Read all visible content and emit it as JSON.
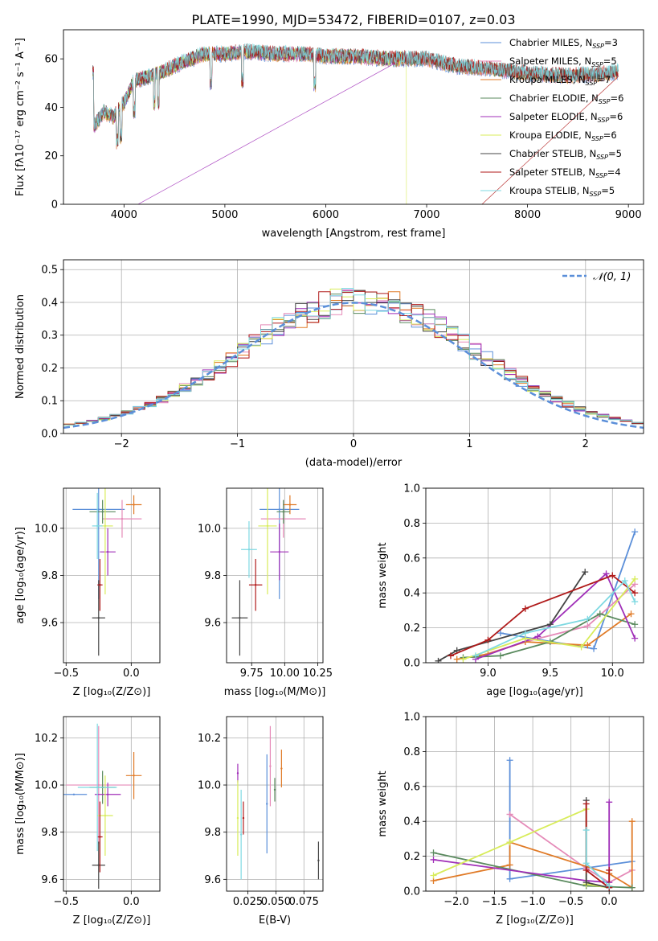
{
  "figure_title": "PLATE=1990, MJD=53472, FIBERID=0107, z=0.03",
  "colors": {
    "c0": "#5b8fd9",
    "c1": "#e58ab8",
    "c2": "#e07a26",
    "c3": "#5a8a5e",
    "c4": "#a02fb8",
    "c5": "#d8ec5a",
    "c6": "#444444",
    "c7": "#b01a1a",
    "c8": "#7fd9e2"
  },
  "chart_data": [
    {
      "id": "spectrum",
      "type": "line",
      "xlabel": "wavelength [Angstrom, rest frame]",
      "ylabel": "Flux [fλ10⁻¹⁷ erg cm⁻² s⁻¹ A⁻¹]",
      "xlim": [
        3400,
        9150
      ],
      "ylim": [
        0,
        72
      ],
      "xticks": [
        4000,
        5000,
        6000,
        7000,
        8000,
        9000
      ],
      "yticks": [
        0,
        20,
        40,
        60
      ],
      "grid": false,
      "legend": "top-right",
      "legend_entries": [
        "Chabrier MILES, N$_{SSP}$=3",
        "Salpeter MILES, N$_{SSP}$=5",
        "Kroupa MILES, N$_{SSP}$=7",
        "Chabrier ELODIE, N$_{SSP}$=6",
        "Salpeter ELODIE, N$_{SSP}$=6",
        "Kroupa ELODIE, N$_{SSP}$=6",
        "Chabrier STELIB, N$_{SSP}$=5",
        "Salpeter STELIB, N$_{SSP}$=4",
        "Kroupa STELIB, N$_{SSP}$=5"
      ],
      "legend_labels": [
        {
          "pre": "Chabrier MILES, N",
          "sub": "SSP",
          "post": "=3"
        },
        {
          "pre": "Salpeter MILES, N",
          "sub": "SSP",
          "post": "=5"
        },
        {
          "pre": "Kroupa MILES, N",
          "sub": "SSP",
          "post": "=7"
        },
        {
          "pre": "Chabrier ELODIE, N",
          "sub": "SSP",
          "post": "=6"
        },
        {
          "pre": "Salpeter ELODIE, N",
          "sub": "SSP",
          "post": "=6"
        },
        {
          "pre": "Kroupa ELODIE, N",
          "sub": "SSP",
          "post": "=6"
        },
        {
          "pre": "Chabrier STELIB, N",
          "sub": "SSP",
          "post": "=5"
        },
        {
          "pre": "Salpeter STELIB, N",
          "sub": "SSP",
          "post": "=4"
        },
        {
          "pre": "Kroupa STELIB, N",
          "sub": "SSP",
          "post": "=5"
        }
      ],
      "continuum": [
        [
          3700,
          32
        ],
        [
          3800,
          38
        ],
        [
          3900,
          36
        ],
        [
          4000,
          42
        ],
        [
          4100,
          51
        ],
        [
          4200,
          52
        ],
        [
          4400,
          55
        ],
        [
          4600,
          59
        ],
        [
          4800,
          62
        ],
        [
          5000,
          62
        ],
        [
          5200,
          63
        ],
        [
          5500,
          62
        ],
        [
          5800,
          62
        ],
        [
          6000,
          61
        ],
        [
          6300,
          61
        ],
        [
          6600,
          60
        ],
        [
          7000,
          60
        ],
        [
          7300,
          57
        ],
        [
          7600,
          56
        ],
        [
          8000,
          54
        ],
        [
          8400,
          53
        ],
        [
          8800,
          54
        ],
        [
          8900,
          55
        ]
      ],
      "wavelength_range": [
        3690,
        8900
      ],
      "series_ends": [
        8900,
        8900,
        8900,
        8900,
        6800,
        6800,
        8900,
        8900,
        8900
      ],
      "dropouts": [
        {
          "series": 7,
          "at": 7420
        },
        {
          "series": 5,
          "at": 6800
        },
        {
          "series": 4,
          "at": 3920
        }
      ]
    },
    {
      "id": "residuals",
      "type": "histogram",
      "xlabel": "(data-model)/error",
      "ylabel": "Normed distribution",
      "xlim": [
        -2.5,
        2.5
      ],
      "ylim": [
        0,
        0.53
      ],
      "xticks": [
        -2,
        -1,
        0,
        1,
        2
      ],
      "xtick_labels": [
        "−2",
        "−1",
        "0",
        "1",
        "2"
      ],
      "yticks": [
        0,
        0.1,
        0.2,
        0.3,
        0.4,
        0.5
      ],
      "ytick_labels": [
        "0.0",
        "0.1",
        "0.2",
        "0.3",
        "0.4",
        "0.5"
      ],
      "grid": true,
      "legend": "top-right",
      "legend_entries": [
        "$\\mathcal{N}(0,1)$"
      ],
      "legend_label": "𝒩(0, 1)",
      "bin_width": 0.1,
      "reference_curve": "normal pdf, mean 0, sd 1"
    },
    {
      "id": "age_vs_Z",
      "type": "scatter",
      "xlabel": "Z [log₁₀(Z/Z⊙)]",
      "ylabel": "age  [log₁₀(age/yr)]",
      "xlim": [
        -0.52,
        0.22
      ],
      "ylim": [
        9.43,
        10.17
      ],
      "xticks": [
        -0.5,
        0.0
      ],
      "xtick_labels": [
        "−0.5",
        "0.0"
      ],
      "yticks": [
        9.6,
        9.8,
        10.0
      ],
      "ytick_labels": [
        "9.6",
        "9.8",
        "10.0"
      ],
      "grid": true,
      "points": [
        {
          "x": -0.25,
          "y": 10.08,
          "xerr": 0.2,
          "yerr": 0.38,
          "series": 0
        },
        {
          "x": -0.07,
          "y": 10.04,
          "xerr": 0.15,
          "yerr": 0.08,
          "series": 1
        },
        {
          "x": 0.02,
          "y": 10.1,
          "xerr": 0.06,
          "yerr": 0.04,
          "series": 2
        },
        {
          "x": -0.22,
          "y": 10.07,
          "xerr": 0.1,
          "yerr": 0.05,
          "series": 3
        },
        {
          "x": -0.18,
          "y": 9.9,
          "xerr": 0.06,
          "yerr": 0.1,
          "series": 4
        },
        {
          "x": -0.2,
          "y": 10.01,
          "xerr": 0.06,
          "yerr": 0.29,
          "series": 5
        },
        {
          "x": -0.25,
          "y": 9.62,
          "xerr": 0.05,
          "yerr": 0.16,
          "series": 6
        },
        {
          "x": -0.24,
          "y": 9.76,
          "xerr": 0.02,
          "yerr": 0.11,
          "series": 7
        },
        {
          "x": -0.26,
          "y": 10.01,
          "xerr": 0.04,
          "yerr": 0.14,
          "series": 8
        }
      ]
    },
    {
      "id": "age_vs_mass",
      "type": "scatter",
      "xlabel": "mass [log₁₀(M/M⊙)]",
      "ylabel": "",
      "xlim": [
        9.56,
        10.29
      ],
      "ylim": [
        9.43,
        10.17
      ],
      "xticks": [
        9.75,
        10.0,
        10.25
      ],
      "xtick_labels": [
        "9.75",
        "10.00",
        "10.25"
      ],
      "yticks": [
        9.6,
        9.8,
        10.0
      ],
      "ytick_labels": [
        "9.6",
        "9.8",
        "10.0"
      ],
      "grid": true,
      "points": [
        {
          "x": 9.96,
          "y": 10.08,
          "xerr": 0.15,
          "yerr": 0.38,
          "series": 0
        },
        {
          "x": 9.99,
          "y": 10.04,
          "xerr": 0.17,
          "yerr": 0.08,
          "series": 1
        },
        {
          "x": 10.04,
          "y": 10.1,
          "xerr": 0.05,
          "yerr": 0.04,
          "series": 2
        },
        {
          "x": 9.99,
          "y": 10.07,
          "xerr": 0.05,
          "yerr": 0.05,
          "series": 3
        },
        {
          "x": 9.96,
          "y": 9.9,
          "xerr": 0.07,
          "yerr": 0.12,
          "series": 4
        },
        {
          "x": 9.87,
          "y": 10.01,
          "xerr": 0.07,
          "yerr": 0.29,
          "series": 5
        },
        {
          "x": 9.66,
          "y": 9.62,
          "xerr": 0.06,
          "yerr": 0.16,
          "series": 6
        },
        {
          "x": 9.78,
          "y": 9.76,
          "xerr": 0.05,
          "yerr": 0.11,
          "series": 7
        },
        {
          "x": 9.73,
          "y": 9.91,
          "xerr": 0.06,
          "yerr": 0.12,
          "series": 8
        }
      ]
    },
    {
      "id": "weight_vs_age",
      "type": "line",
      "xlabel": "age  [log₁₀(age/yr)]",
      "ylabel": "mass weight",
      "xlim": [
        8.5,
        10.25
      ],
      "ylim": [
        0,
        1
      ],
      "xticks": [
        9.0,
        9.5,
        10.0
      ],
      "xtick_labels": [
        "9.0",
        "9.5",
        "10.0"
      ],
      "yticks": [
        0,
        0.2,
        0.4,
        0.6,
        0.8,
        1.0
      ],
      "ytick_labels": [
        "0.0",
        "0.2",
        "0.4",
        "0.6",
        "0.8",
        "1.0"
      ],
      "grid": true,
      "series": [
        {
          "series": 0,
          "x": [
            9.1,
            9.85,
            10.18
          ],
          "y": [
            0.17,
            0.08,
            0.75
          ]
        },
        {
          "series": 1,
          "x": [
            8.9,
            9.3,
            9.8,
            10.18
          ],
          "y": [
            0.03,
            0.12,
            0.21,
            0.45
          ]
        },
        {
          "series": 2,
          "x": [
            8.75,
            9.0,
            9.3,
            9.8,
            10.15
          ],
          "y": [
            0.02,
            0.05,
            0.12,
            0.1,
            0.28
          ]
        },
        {
          "series": 3,
          "x": [
            8.8,
            9.1,
            9.5,
            9.9,
            10.18
          ],
          "y": [
            0.03,
            0.04,
            0.12,
            0.28,
            0.22
          ]
        },
        {
          "series": 4,
          "x": [
            8.9,
            9.4,
            9.95,
            10.18
          ],
          "y": [
            0.02,
            0.15,
            0.51,
            0.14
          ]
        },
        {
          "series": 5,
          "x": [
            8.8,
            9.3,
            9.75,
            10.18
          ],
          "y": [
            0.02,
            0.14,
            0.09,
            0.48
          ]
        },
        {
          "series": 6,
          "x": [
            8.6,
            8.75,
            9.5,
            9.78
          ],
          "y": [
            0.01,
            0.07,
            0.22,
            0.52
          ]
        },
        {
          "series": 7,
          "x": [
            8.7,
            9.0,
            9.3,
            10.0,
            10.18
          ],
          "y": [
            0.04,
            0.13,
            0.31,
            0.5,
            0.4
          ]
        },
        {
          "series": 8,
          "x": [
            8.9,
            9.3,
            9.8,
            10.1,
            10.18
          ],
          "y": [
            0.04,
            0.17,
            0.25,
            0.47,
            0.35
          ]
        }
      ]
    },
    {
      "id": "mass_vs_Z",
      "type": "scatter",
      "xlabel": "Z [log₁₀(Z/Z⊙)]",
      "ylabel": "mass [log₁₀(M/M⊙)]",
      "xlim": [
        -0.52,
        0.22
      ],
      "ylim": [
        9.55,
        10.29
      ],
      "xticks": [
        -0.5,
        0.0
      ],
      "xtick_labels": [
        "−0.5",
        "0.0"
      ],
      "yticks": [
        9.6,
        9.8,
        10.0,
        10.2
      ],
      "ytick_labels": [
        "9.6",
        "9.8",
        "10.0",
        "10.2"
      ],
      "grid": true,
      "points": [
        {
          "x": -0.44,
          "y": 9.96,
          "xerr": 0.1,
          "yerr": 0.0,
          "series": 0
        },
        {
          "x": -0.25,
          "y": 10.0,
          "xerr": 0.25,
          "yerr": 0.25,
          "series": 1
        },
        {
          "x": 0.02,
          "y": 10.04,
          "xerr": 0.06,
          "yerr": 0.1,
          "series": 2
        },
        {
          "x": -0.22,
          "y": 9.99,
          "xerr": 0.1,
          "yerr": 0.07,
          "series": 3
        },
        {
          "x": -0.18,
          "y": 9.96,
          "xerr": 0.1,
          "yerr": 0.05,
          "series": 4
        },
        {
          "x": -0.2,
          "y": 9.87,
          "xerr": 0.06,
          "yerr": 0.17,
          "series": 5
        },
        {
          "x": -0.25,
          "y": 9.66,
          "xerr": 0.05,
          "yerr": 0.1,
          "series": 6
        },
        {
          "x": -0.24,
          "y": 9.78,
          "xerr": 0.02,
          "yerr": 0.15,
          "series": 7
        },
        {
          "x": -0.26,
          "y": 9.99,
          "xerr": 0.15,
          "yerr": 0.27,
          "series": 8
        }
      ]
    },
    {
      "id": "mass_vs_ebv",
      "type": "scatter",
      "xlabel": "E(B-V)",
      "ylabel": "",
      "xlim": [
        0.006,
        0.092
      ],
      "ylim": [
        9.55,
        10.29
      ],
      "xticks": [
        0.025,
        0.05,
        0.075
      ],
      "xtick_labels": [
        "0.025",
        "0.050",
        "0.075"
      ],
      "yticks": [
        9.6,
        9.8,
        10.0,
        10.2
      ],
      "ytick_labels": [
        "9.6",
        "9.8",
        "10.0",
        "10.2"
      ],
      "grid": true,
      "points": [
        {
          "x": 0.042,
          "y": 9.92,
          "xerr": 0.0,
          "yerr": 0.21,
          "series": 0
        },
        {
          "x": 0.045,
          "y": 10.08,
          "xerr": 0.0,
          "yerr": 0.17,
          "series": 1
        },
        {
          "x": 0.055,
          "y": 10.07,
          "xerr": 0.0,
          "yerr": 0.08,
          "series": 2
        },
        {
          "x": 0.049,
          "y": 9.98,
          "xerr": 0.0,
          "yerr": 0.05,
          "series": 3
        },
        {
          "x": 0.016,
          "y": 10.05,
          "xerr": 0.0,
          "yerr": 0.04,
          "series": 4
        },
        {
          "x": 0.016,
          "y": 9.86,
          "xerr": 0.0,
          "yerr": 0.16,
          "series": 5
        },
        {
          "x": 0.088,
          "y": 9.68,
          "xerr": 0.0,
          "yerr": 0.08,
          "series": 6
        },
        {
          "x": 0.021,
          "y": 9.86,
          "xerr": 0.0,
          "yerr": 0.07,
          "series": 7
        },
        {
          "x": 0.019,
          "y": 9.79,
          "xerr": 0.0,
          "yerr": 0.19,
          "series": 8
        }
      ]
    },
    {
      "id": "weight_vs_Z",
      "type": "line",
      "xlabel": "Z [log₁₀(Z/Z⊙)]",
      "ylabel": "mass weight",
      "xlim": [
        -2.4,
        0.45
      ],
      "ylim": [
        0,
        1
      ],
      "xticks": [
        -2.0,
        -1.5,
        -1.0,
        -0.5,
        0.0
      ],
      "xtick_labels": [
        "−2.0",
        "−1.5",
        "−1.0",
        "−0.5",
        "0.0"
      ],
      "yticks": [
        0,
        0.2,
        0.4,
        0.6,
        0.8,
        1.0
      ],
      "ytick_labels": [
        "0.0",
        "0.2",
        "0.4",
        "0.6",
        "0.8",
        "1.0"
      ],
      "grid": true,
      "series": [
        {
          "series": 0,
          "x": [
            -1.3,
            -1.3,
            0.3
          ],
          "y": [
            0.75,
            0.07,
            0.17
          ]
        },
        {
          "series": 1,
          "x": [
            -1.3,
            -1.3,
            -0.3,
            0.0,
            0.3
          ],
          "y": [
            0.44,
            0.44,
            0.13,
            0.05,
            0.12
          ]
        },
        {
          "series": 2,
          "x": [
            -2.3,
            -1.3,
            -1.3,
            0.0,
            0.3,
            0.3
          ],
          "y": [
            0.06,
            0.15,
            0.28,
            0.1,
            0.02,
            0.4
          ]
        },
        {
          "series": 3,
          "x": [
            -2.3,
            -0.3,
            0.3
          ],
          "y": [
            0.22,
            0.03,
            0.02
          ]
        },
        {
          "series": 4,
          "x": [
            -2.3,
            -0.3,
            0.0,
            0.0
          ],
          "y": [
            0.18,
            0.06,
            0.05,
            0.51
          ]
        },
        {
          "series": 5,
          "x": [
            -2.3,
            -1.3,
            -0.3,
            -0.3,
            0.0
          ],
          "y": [
            0.09,
            0.28,
            0.47,
            0.04,
            0.02
          ]
        },
        {
          "series": 6,
          "x": [
            -0.3,
            -0.3,
            0.0
          ],
          "y": [
            0.52,
            0.05,
            0.02
          ]
        },
        {
          "series": 7,
          "x": [
            -0.3,
            -0.3,
            0.0,
            0.0
          ],
          "y": [
            0.5,
            0.12,
            0.02,
            0.12
          ]
        },
        {
          "series": 8,
          "x": [
            -0.3,
            -0.3,
            0.0
          ],
          "y": [
            0.35,
            0.16,
            0.03
          ]
        }
      ]
    }
  ]
}
